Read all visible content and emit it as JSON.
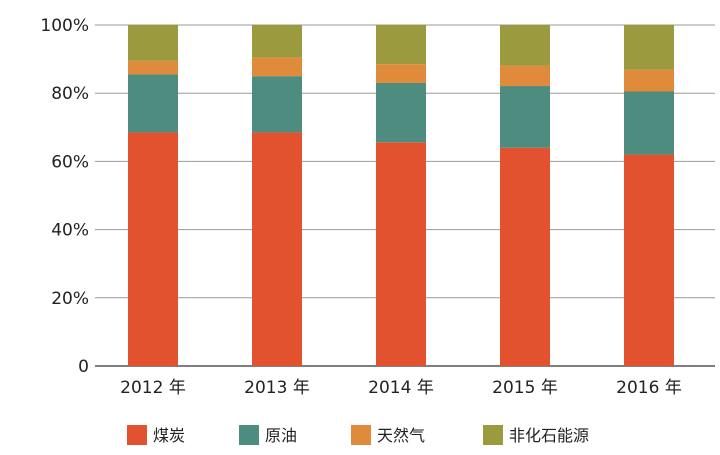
{
  "chart_data": {
    "type": "bar",
    "stacked": true,
    "categories": [
      "2012 年",
      "2013 年",
      "2014 年",
      "2015 年",
      "2016 年"
    ],
    "series": [
      {
        "name": "煤炭",
        "color": "#E2522E",
        "values": [
          68.5,
          68.5,
          65.6,
          64.0,
          62.0
        ]
      },
      {
        "name": "原油",
        "color": "#4E8C80",
        "values": [
          17.0,
          16.5,
          17.4,
          18.1,
          18.5
        ]
      },
      {
        "name": "天然气",
        "color": "#E08A3C",
        "values": [
          4.0,
          5.5,
          5.5,
          6.0,
          6.4
        ]
      },
      {
        "name": "非化石能源",
        "color": "#9C9A3E",
        "values": [
          10.5,
          9.5,
          11.5,
          11.9,
          13.1
        ]
      }
    ],
    "yticks": [
      "0",
      "20%",
      "40%",
      "60%",
      "80%",
      "100%"
    ],
    "ylim": [
      0,
      100
    ],
    "grid": true,
    "legend": "bottom"
  }
}
